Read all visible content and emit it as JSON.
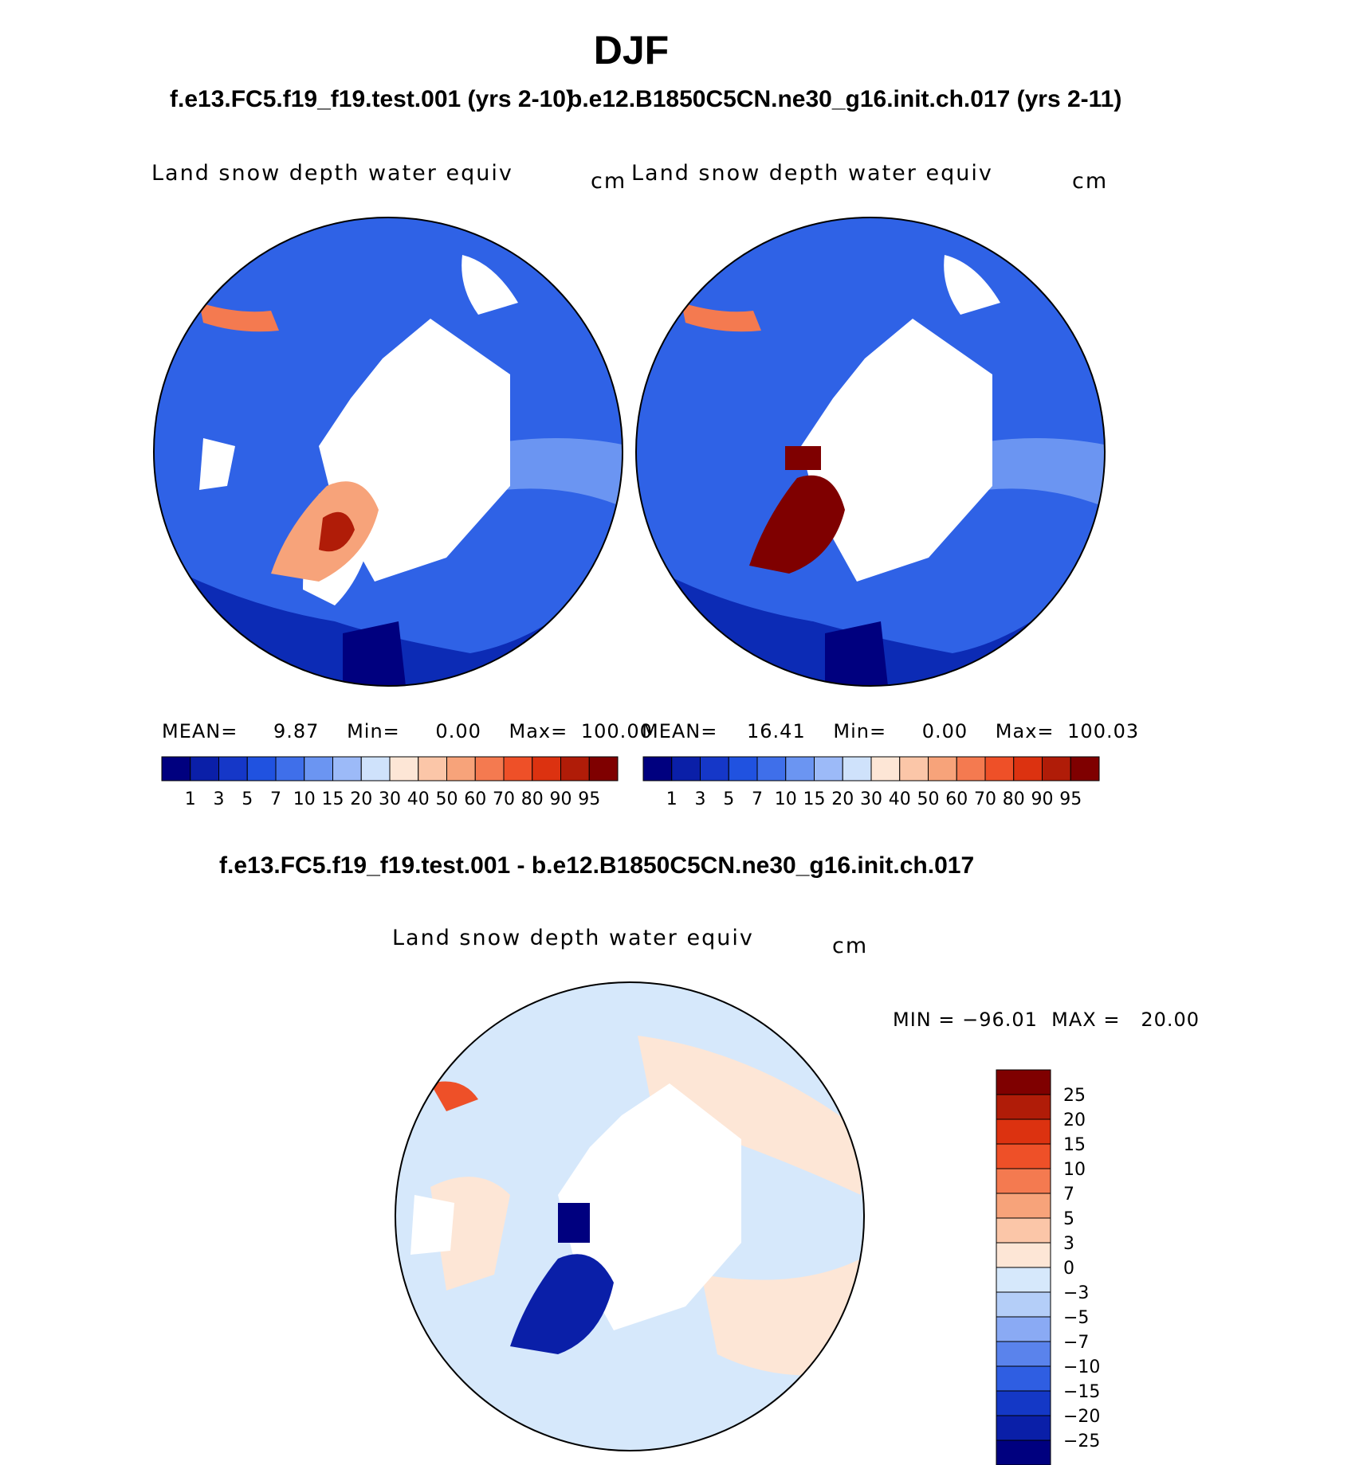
{
  "page_title": "DJF",
  "panels": [
    {
      "case_title": "f.e13.FC5.f19_f19.test.001 (yrs 2-10)",
      "variable": "Land snow depth water equiv",
      "units": "cm",
      "stats": {
        "mean_label": "MEAN=",
        "mean": "9.87",
        "min_label": "Min=",
        "min": "0.00",
        "max_label": "Max=",
        "max": "100.00"
      }
    },
    {
      "case_title": "b.e12.B1850C5CN.ne30_g16.init.ch.017 (yrs 2-11)",
      "variable": "Land snow depth water equiv",
      "units": "cm",
      "stats": {
        "mean_label": "MEAN=",
        "mean": "16.41",
        "min_label": "Min=",
        "min": "0.00",
        "max_label": "Max=",
        "max": "100.03"
      }
    }
  ],
  "diff_panel": {
    "title": "f.e13.FC5.f19_f19.test.001 - b.e12.B1850C5CN.ne30_g16.init.ch.017",
    "variable": "Land snow depth water equiv",
    "units": "cm",
    "minmax": "MIN = −96.01  MAX =   20.00"
  },
  "abs_colorbar": {
    "labels": [
      "1",
      "3",
      "5",
      "7",
      "10",
      "15",
      "20",
      "30",
      "40",
      "50",
      "60",
      "70",
      "80",
      "90",
      "95"
    ],
    "colors": [
      "#00007f",
      "#0a1fa8",
      "#1537c8",
      "#2052e0",
      "#3f6fea",
      "#6b95f2",
      "#9cbaf8",
      "#cfe2fb",
      "#fde6d6",
      "#fbc6a8",
      "#f7a37a",
      "#f47a50",
      "#ee5028",
      "#dc3210",
      "#b01c08",
      "#7f0000"
    ]
  },
  "diff_colorbar": {
    "labels": [
      "25",
      "20",
      "15",
      "10",
      "7",
      "5",
      "3",
      "0",
      "−3",
      "−5",
      "−7",
      "−10",
      "−15",
      "−20",
      "−25"
    ],
    "colors": [
      "#7f0000",
      "#b01c08",
      "#dc3210",
      "#ee5028",
      "#f47a50",
      "#f7a37a",
      "#fbc6a8",
      "#fde6d6",
      "#d6e8fb",
      "#b4cef8",
      "#8aaaf4",
      "#5a83ec",
      "#2f5ee2",
      "#1438c6",
      "#0a1fa8",
      "#00007f"
    ]
  }
}
